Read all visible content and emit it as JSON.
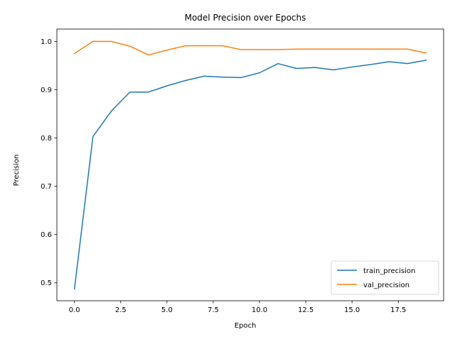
{
  "chart_data": {
    "type": "line",
    "title": "Model Precision over Epochs",
    "xlabel": "Epoch",
    "ylabel": "Precision",
    "xlim": [
      -0.95,
      19.95
    ],
    "ylim": [
      0.4629,
      1.0255
    ],
    "xticks": [
      0.0,
      2.5,
      5.0,
      7.5,
      10.0,
      12.5,
      15.0,
      17.5
    ],
    "xtick_labels": [
      "0.0",
      "2.5",
      "5.0",
      "7.5",
      "10.0",
      "12.5",
      "15.0",
      "17.5"
    ],
    "yticks": [
      0.5,
      0.6,
      0.7,
      0.8,
      0.9,
      1.0
    ],
    "ytick_labels": [
      "0.5",
      "0.6",
      "0.7",
      "0.8",
      "0.9",
      "1.0"
    ],
    "grid": false,
    "legend_position": "lower-right",
    "x": [
      0,
      1,
      2,
      3,
      4,
      5,
      6,
      7,
      8,
      9,
      10,
      11,
      12,
      13,
      14,
      15,
      16,
      17,
      18,
      19
    ],
    "series": [
      {
        "name": "train_precision",
        "color": "#1f77b4",
        "values": [
          0.487,
          0.803,
          0.856,
          0.895,
          0.895,
          0.908,
          0.919,
          0.928,
          0.926,
          0.925,
          0.935,
          0.954,
          0.944,
          0.946,
          0.941,
          0.947,
          0.952,
          0.958,
          0.954,
          0.961
        ]
      },
      {
        "name": "val_precision",
        "color": "#ff7f0e",
        "values": [
          0.975,
          1.0,
          1.0,
          0.99,
          0.972,
          0.982,
          0.991,
          0.991,
          0.991,
          0.983,
          0.983,
          0.983,
          0.984,
          0.984,
          0.984,
          0.984,
          0.984,
          0.984,
          0.984,
          0.976
        ]
      }
    ]
  }
}
